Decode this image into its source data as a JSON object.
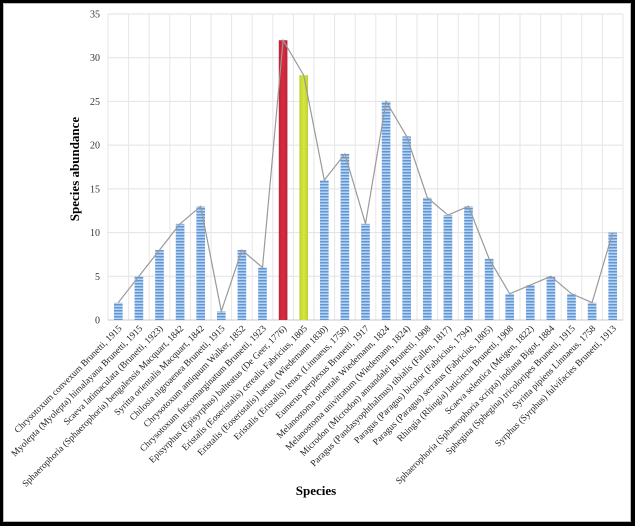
{
  "chart_data": {
    "type": "bar",
    "title": "",
    "xlabel": "Species",
    "ylabel": "Species abundance",
    "ylim": [
      0,
      35
    ],
    "yticks": [
      0,
      5,
      10,
      15,
      20,
      25,
      30,
      35
    ],
    "grid": true,
    "legend": "none",
    "overlay_line": true,
    "categories": [
      "Chrysotoxum convexum Brunetti, 1915",
      "Myolepta (Myolepta) himalayana Brunetti, 1915",
      "Scaeva latimaculata (Brunetti, 1923)",
      "Sphaerophoria (Sphaerophoria) bengalensis Macquart, 1842",
      "Syritta orientalis Macquart, 1842",
      "Chilosia nigroaenea Brunetti, 1915",
      "Chrysotoxum antiquum Walker, 1852",
      "Chrysotoxum fuscomarginatum Brunetti, 1923",
      "Episyrphus (Episyrphus) balteatus (De Geer, 1776)",
      "Eristalis (Eoseristalis) cerealis Fabricius, 1805",
      "Eristalis (Eoseristalis) laetus (Wiedemann 1830)",
      "Eristalis (Eristalis) tenax (Linnaeus, 1758)",
      "Eumerus perplexus Brunetti, 1917",
      "Melanostoma orientale Wiedemann, 1824",
      "Melanostoma univittatum (Wiedemann, 1824)",
      "Microdon (Microdon) annandalei Brunetti, 1908",
      "Paragus (Pandasyophthalmus) tibialis (Fallen, 1817)",
      "Paragus (Paragus) bicolor (Fabricius, 1794)",
      "Paragus (Paragus) serratus (Fabricius, 1805)",
      "Rhingia (Rhingia) laticincta Brunetti, 1908",
      "Scaeva selentica (Meigen, 1822)",
      "Sphaerophoria (Sphaerophoria scripta) indiana Bigot, 1884",
      "Sphegina (Sphegina) tricoloripes Brunetti, 1915",
      "Syritta pipiens Linnaeus, 1758",
      "Syrphus (Syrphus) fulvifacies Brunetti, 1913"
    ],
    "values": [
      2,
      5,
      8,
      11,
      13,
      1,
      8,
      6,
      32,
      28,
      16,
      19,
      11,
      25,
      21,
      14,
      12,
      13,
      7,
      3,
      4,
      5,
      3,
      2,
      10
    ],
    "highlight": {
      "8": "#d42a3f",
      "9": "#cfe03a"
    },
    "default_color": "#6fa3dd",
    "line_color": "#9a9a9a"
  }
}
